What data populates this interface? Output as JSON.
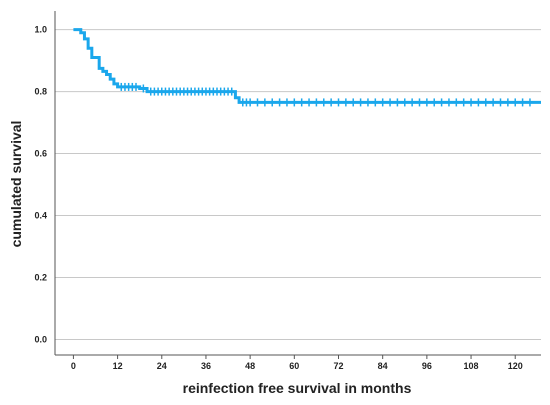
{
  "chart_data": {
    "type": "line",
    "subtype": "kaplan-meier-step",
    "title": "",
    "xlabel": "reinfection free survival in months",
    "ylabel": "cumulated survival",
    "xlim": [
      -5,
      127
    ],
    "ylim": [
      -0.05,
      1.06
    ],
    "x_ticks": [
      0,
      12,
      24,
      36,
      48,
      60,
      72,
      84,
      96,
      108,
      120
    ],
    "y_ticks": [
      0.0,
      0.2,
      0.4,
      0.6,
      0.8,
      1.0
    ],
    "y_tick_labels": [
      "0.0",
      "0.2",
      "0.4",
      "0.6",
      "0.8",
      "1.0"
    ],
    "grid": {
      "horizontal": true,
      "vertical": false
    },
    "series": [
      {
        "color": "#1aa7ec",
        "step": [
          {
            "x": 0,
            "y": 1.0
          },
          {
            "x": 2,
            "y": 0.99
          },
          {
            "x": 3,
            "y": 0.97
          },
          {
            "x": 4,
            "y": 0.94
          },
          {
            "x": 5,
            "y": 0.91
          },
          {
            "x": 7,
            "y": 0.875
          },
          {
            "x": 8,
            "y": 0.865
          },
          {
            "x": 9,
            "y": 0.855
          },
          {
            "x": 10,
            "y": 0.84
          },
          {
            "x": 11,
            "y": 0.825
          },
          {
            "x": 12,
            "y": 0.815
          },
          {
            "x": 18,
            "y": 0.81
          },
          {
            "x": 20,
            "y": 0.8
          },
          {
            "x": 44,
            "y": 0.78
          },
          {
            "x": 45,
            "y": 0.765
          },
          {
            "x": 127,
            "y": 0.765
          }
        ],
        "censored_x": [
          13,
          14,
          15,
          16,
          17,
          19,
          21,
          22,
          23,
          24,
          25,
          26,
          27,
          28,
          29,
          30,
          31,
          32,
          33,
          34,
          35,
          36,
          37,
          38,
          39,
          40,
          41,
          42,
          43,
          46,
          47,
          48,
          50,
          52,
          54,
          56,
          58,
          60,
          62,
          64,
          66,
          68,
          70,
          72,
          74,
          76,
          78,
          80,
          82,
          84,
          86,
          88,
          90,
          92,
          94,
          96,
          98,
          100,
          102,
          104,
          106,
          108,
          110,
          112,
          114,
          116,
          118,
          120,
          122,
          124
        ]
      }
    ]
  }
}
